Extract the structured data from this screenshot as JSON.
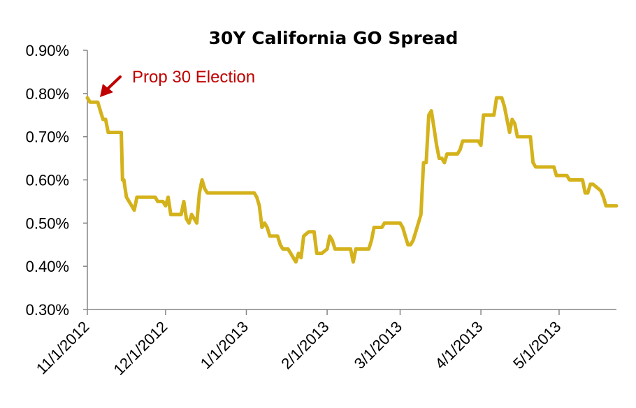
{
  "chart_data": {
    "type": "line",
    "title": "30Y California GO Spread",
    "xlabel": "",
    "ylabel": "",
    "ylim": [
      0.3,
      0.9
    ],
    "y_tick_labels": [
      "0.30%",
      "0.40%",
      "0.50%",
      "0.60%",
      "0.70%",
      "0.80%",
      "0.90%"
    ],
    "y_tick_values": [
      0.3,
      0.4,
      0.5,
      0.6,
      0.7,
      0.8,
      0.9
    ],
    "x_range_days": [
      0,
      203
    ],
    "x_tick_labels": [
      "11/1/2012",
      "12/1/2012",
      "1/1/2013",
      "2/1/2013",
      "3/1/2013",
      "4/1/2013",
      "5/1/2013"
    ],
    "x_tick_days": [
      0,
      30,
      61,
      92,
      120,
      151,
      181
    ],
    "annotation": {
      "text": "Prop 30 Election",
      "day": 0,
      "value": 0.79
    },
    "series": [
      {
        "name": "30Y California GO Spread",
        "color": "#d4b21b",
        "x": [
          0,
          1,
          4,
          5,
          6,
          7,
          8,
          9,
          11,
          13,
          13.5,
          14,
          15,
          16,
          17,
          18,
          19,
          20,
          21,
          25,
          26,
          27,
          28,
          29,
          30,
          31,
          32,
          33,
          34,
          36,
          37,
          38,
          39,
          40,
          41,
          42,
          43,
          44,
          45,
          46,
          47,
          49,
          50,
          51,
          52,
          55,
          60,
          64,
          65,
          66,
          67,
          68,
          69,
          70,
          71,
          72,
          73,
          74,
          75,
          76,
          77,
          78,
          79,
          80,
          81,
          82,
          83,
          84,
          85,
          86,
          87,
          88,
          89,
          90,
          91,
          92,
          93,
          94,
          95,
          96,
          97,
          98,
          99,
          100,
          101,
          102,
          103,
          104,
          105,
          106,
          107,
          108,
          109,
          110,
          111,
          112,
          113,
          114,
          115,
          116,
          117,
          118,
          119,
          120,
          121,
          122,
          123,
          124,
          125,
          126,
          127,
          128,
          129,
          130,
          131,
          132,
          133,
          134,
          135,
          136,
          137,
          138,
          139,
          140,
          141,
          142,
          143,
          144,
          145,
          146,
          147,
          148,
          149,
          150,
          151,
          152,
          153,
          154,
          155,
          156,
          157,
          158,
          159,
          160,
          161,
          162,
          163,
          164,
          165,
          166,
          167,
          168,
          169,
          170,
          171,
          172,
          173,
          174,
          175,
          176,
          177,
          178,
          179,
          180,
          181,
          182,
          183,
          184,
          185,
          186,
          187,
          188,
          189,
          190,
          191,
          192,
          193,
          194,
          195,
          196,
          197,
          198,
          199,
          200,
          201,
          202,
          203
        ],
        "y": [
          0.79,
          0.78,
          0.78,
          0.76,
          0.74,
          0.74,
          0.71,
          0.71,
          0.71,
          0.71,
          0.6,
          0.6,
          0.56,
          0.55,
          0.54,
          0.53,
          0.56,
          0.56,
          0.56,
          0.56,
          0.56,
          0.55,
          0.55,
          0.55,
          0.54,
          0.56,
          0.52,
          0.52,
          0.52,
          0.52,
          0.55,
          0.51,
          0.5,
          0.52,
          0.51,
          0.5,
          0.57,
          0.6,
          0.58,
          0.57,
          0.57,
          0.57,
          0.57,
          0.57,
          0.57,
          0.57,
          0.57,
          0.57,
          0.56,
          0.54,
          0.49,
          0.5,
          0.49,
          0.47,
          0.47,
          0.47,
          0.47,
          0.45,
          0.44,
          0.44,
          0.44,
          0.43,
          0.42,
          0.41,
          0.43,
          0.42,
          0.47,
          0.475,
          0.48,
          0.48,
          0.48,
          0.43,
          0.43,
          0.43,
          0.435,
          0.44,
          0.47,
          0.46,
          0.44,
          0.44,
          0.44,
          0.44,
          0.44,
          0.44,
          0.44,
          0.41,
          0.44,
          0.44,
          0.44,
          0.44,
          0.44,
          0.44,
          0.46,
          0.49,
          0.49,
          0.49,
          0.49,
          0.5,
          0.5,
          0.5,
          0.5,
          0.5,
          0.5,
          0.5,
          0.49,
          0.47,
          0.45,
          0.45,
          0.46,
          0.48,
          0.5,
          0.52,
          0.64,
          0.64,
          0.75,
          0.76,
          0.72,
          0.68,
          0.65,
          0.65,
          0.64,
          0.66,
          0.66,
          0.66,
          0.66,
          0.66,
          0.67,
          0.69,
          0.69,
          0.69,
          0.69,
          0.69,
          0.69,
          0.69,
          0.68,
          0.75,
          0.75,
          0.75,
          0.75,
          0.75,
          0.79,
          0.79,
          0.79,
          0.77,
          0.74,
          0.71,
          0.74,
          0.73,
          0.7,
          0.7,
          0.7,
          0.7,
          0.7,
          0.7,
          0.64,
          0.63,
          0.63,
          0.63,
          0.63,
          0.63,
          0.63,
          0.63,
          0.63,
          0.61,
          0.61,
          0.61,
          0.61,
          0.61,
          0.6,
          0.6,
          0.6,
          0.6,
          0.6,
          0.6,
          0.57,
          0.57,
          0.59,
          0.59,
          0.585,
          0.58,
          0.575,
          0.56,
          0.54,
          0.54,
          0.54,
          0.54,
          0.54
        ]
      }
    ]
  }
}
